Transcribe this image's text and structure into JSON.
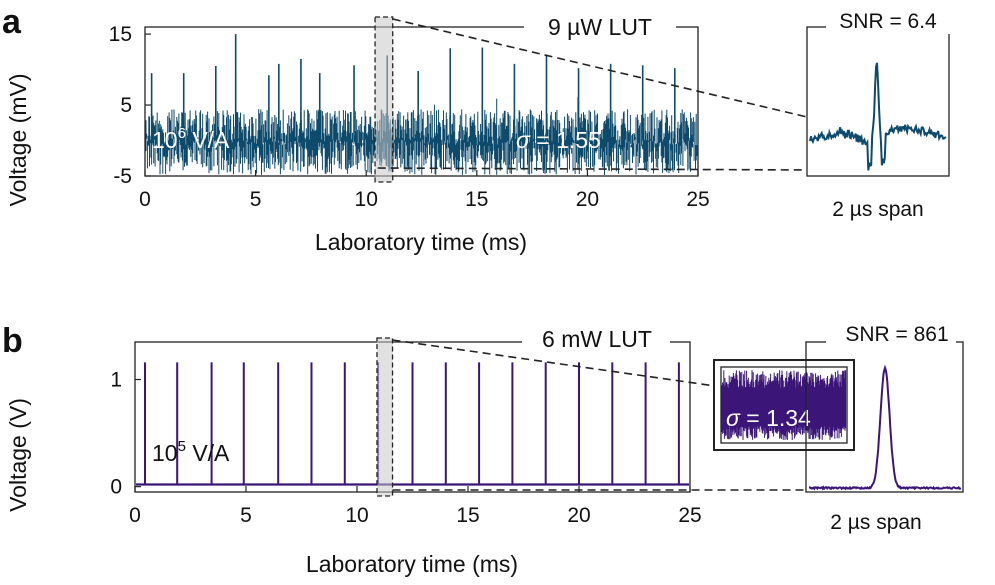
{
  "colors": {
    "panel_a": "#0d4a6b",
    "panel_b": "#3b1678"
  },
  "chart_data": [
    {
      "panel": "a",
      "type": "line",
      "lut_label": "9 µW LUT",
      "gain_base": "10",
      "gain_exp": "6",
      "gain_unit": " V/A",
      "sigma_symbol": "σ",
      "sigma_text": " = 1.55",
      "sigma": 1.55,
      "xlabel": "Laboratory time (ms)",
      "ylabel": "Voltage (mV)",
      "xlim": [
        0,
        25
      ],
      "ylim": [
        -5,
        16
      ],
      "xticks": [
        0,
        5,
        10,
        15,
        20,
        25
      ],
      "xtick_labels": [
        "0",
        "5",
        "10",
        "15",
        "20",
        "25"
      ],
      "yticks": [
        15,
        5,
        -5
      ],
      "ytick_labels": [
        "15",
        "5",
        "-5"
      ],
      "noise_band_mV": [
        -4.8,
        4.4
      ],
      "pulse_period_ms": 1.45,
      "pulse_times_ms": [
        0.3,
        1.75,
        3.2,
        4.1,
        5.6,
        6.05,
        7.05,
        7.9,
        9.45,
        10.95,
        12.35,
        13.8,
        15.25,
        16.7,
        18.15,
        19.6,
        21.05,
        22.5,
        23.95
      ],
      "pulse_peaks_mV": [
        9.5,
        9.5,
        10.5,
        15.0,
        9.2,
        10.8,
        11.5,
        9.5,
        10.6,
        12.0,
        9.8,
        13.0,
        13.1,
        10.8,
        12.0,
        10.2,
        10.8,
        10.6,
        10.2
      ],
      "zoom_window_ms": [
        10.4,
        11.2
      ],
      "inset": {
        "snr_label": "SNR = 6.4",
        "snr": 6.4,
        "span_label": "2 µs span"
      }
    },
    {
      "panel": "b",
      "type": "line",
      "lut_label": "6 mW LUT",
      "gain_base": "10",
      "gain_exp": "5",
      "gain_unit": " V/A",
      "xlabel": "Laboratory time (ms)",
      "ylabel": "Voltage (V)",
      "xlim": [
        0,
        25
      ],
      "ylim": [
        -0.05,
        1.35
      ],
      "xticks": [
        0,
        5,
        10,
        15,
        20,
        25
      ],
      "xtick_labels": [
        "0",
        "5",
        "10",
        "15",
        "20",
        "25"
      ],
      "yticks": [
        1,
        0
      ],
      "ytick_labels": [
        "1",
        "0"
      ],
      "baseline_V": 0.02,
      "pulse_peak_V": 1.16,
      "pulse_times_ms": [
        0.45,
        1.9,
        3.45,
        4.9,
        6.45,
        7.95,
        9.45,
        10.95,
        12.5,
        14.0,
        15.5,
        17.0,
        18.5,
        20.0,
        21.5,
        23.0,
        24.5
      ],
      "zoom_window_ms": [
        10.9,
        11.6
      ],
      "inset": {
        "snr_label": "SNR = 861",
        "snr": 861,
        "span_label": "2 µs span"
      },
      "noise_inset": {
        "sigma_symbol": "σ",
        "sigma_text": " = 1.34",
        "sigma": 1.34
      }
    }
  ]
}
